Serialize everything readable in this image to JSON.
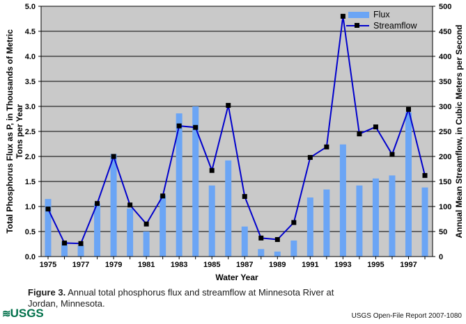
{
  "chart": {
    "legend": {
      "flux": "Flux",
      "streamflow": "Streamflow"
    },
    "left_axis_title_line1": "Total Phosphorus Flux as P, in Thousands of Metric",
    "left_axis_title_line2": "Tons per Year",
    "right_axis_title": "Annual Mean Streamflow, in Cubic Meters per Second",
    "x_axis_title": "Water Year"
  },
  "chart_data": {
    "type": "bar+line",
    "x": [
      1975,
      1976,
      1977,
      1978,
      1979,
      1980,
      1981,
      1982,
      1983,
      1984,
      1985,
      1986,
      1987,
      1988,
      1989,
      1990,
      1991,
      1992,
      1993,
      1994,
      1995,
      1996,
      1997,
      1998
    ],
    "x_label_years": [
      1975,
      1977,
      1979,
      1981,
      1983,
      1985,
      1987,
      1989,
      1991,
      1993,
      1995,
      1997
    ],
    "series": [
      {
        "name": "Flux",
        "type": "bar",
        "axis": "left",
        "color": "#6BA5F5",
        "values": [
          1.15,
          0.3,
          0.22,
          1.06,
          2.05,
          0.96,
          0.5,
          1.22,
          2.86,
          3.0,
          1.42,
          1.92,
          0.6,
          0.15,
          0.1,
          0.32,
          1.18,
          1.34,
          2.24,
          1.42,
          1.56,
          1.62,
          2.88,
          1.38
        ]
      },
      {
        "name": "Streamflow",
        "type": "line",
        "axis": "right",
        "color": "#0000CC",
        "marker": "black-square",
        "values": [
          95,
          27,
          26,
          106,
          200,
          103,
          65,
          121,
          261,
          258,
          172,
          302,
          120,
          37,
          34,
          68,
          198,
          219,
          480,
          245,
          259,
          204,
          294,
          162
        ]
      }
    ],
    "left_axis": {
      "label": "Total Phosphorus Flux as P, in Thousands of Metric Tons per Year",
      "min": 0,
      "max": 5,
      "step": 0.5,
      "decimals": 1
    },
    "right_axis": {
      "label": "Annual Mean Streamflow, in Cubic Meters per Second",
      "min": 0,
      "max": 500,
      "step": 50,
      "decimals": 0
    },
    "xlabel": "Water Year",
    "grid": true,
    "legend_position": "top-right",
    "plot_bg": "#C9C9C9",
    "title": ""
  },
  "caption": {
    "label": "Figure 3.",
    "text": "Annual total phosphorus flux and streamflow at Minnesota River at Jordan, Minnesota."
  },
  "footer": {
    "logo": "USGS",
    "report": "USGS Open-File Report 2007-1080"
  }
}
